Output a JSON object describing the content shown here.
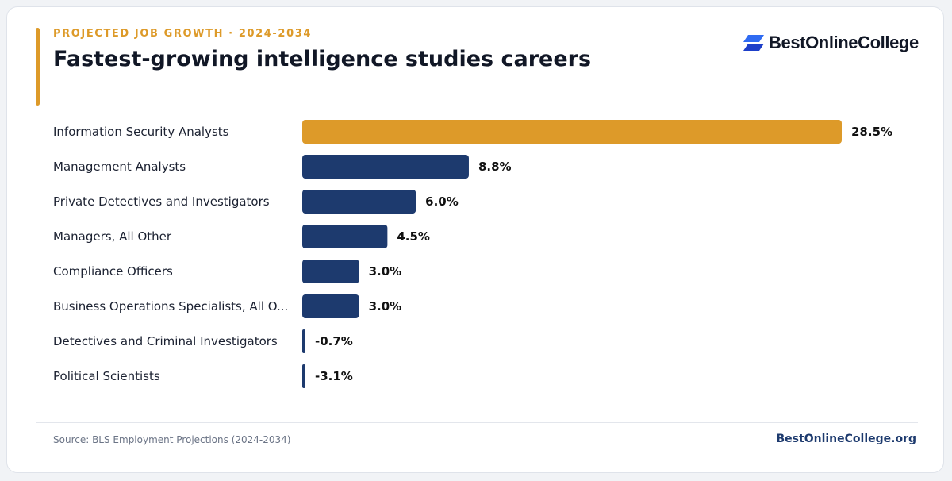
{
  "header": {
    "eyebrow": "PROJECTED JOB GROWTH · 2024-2034",
    "title": "Fastest-growing intelligence studies careers",
    "brand_name": "BestOnlineCollege",
    "brand_icon": "bestonlinecollege-logo-icon"
  },
  "footer": {
    "source": "Source: BLS Employment Projections (2024-2034)",
    "site": "BestOnlineCollege.org"
  },
  "colors": {
    "highlight": "#dd9a29",
    "bar": "#1d3a6e",
    "label": "#1b2131",
    "value": "#111111"
  },
  "chart_data": {
    "type": "bar",
    "orientation": "horizontal",
    "title": "Fastest-growing intelligence studies careers",
    "subtitle": "PROJECTED JOB GROWTH · 2024-2034",
    "xlabel": "",
    "ylabel": "",
    "unit": "%",
    "grid": false,
    "legend": "none",
    "xlim": [
      0,
      28.5
    ],
    "categories": [
      "Information Security Analysts",
      "Management Analysts",
      "Private Detectives and Investigators",
      "Managers, All Other",
      "Compliance Officers",
      "Business Operations Specialists, All O...",
      "Detectives and Criminal Investigators",
      "Political Scientists"
    ],
    "values": [
      28.5,
      8.8,
      6.0,
      4.5,
      3.0,
      3.0,
      -0.7,
      -3.1
    ],
    "value_labels": [
      "28.5%",
      "8.8%",
      "6.0%",
      "4.5%",
      "3.0%",
      "3.0%",
      "-0.7%",
      "-3.1%"
    ],
    "highlighted_index": 0
  }
}
